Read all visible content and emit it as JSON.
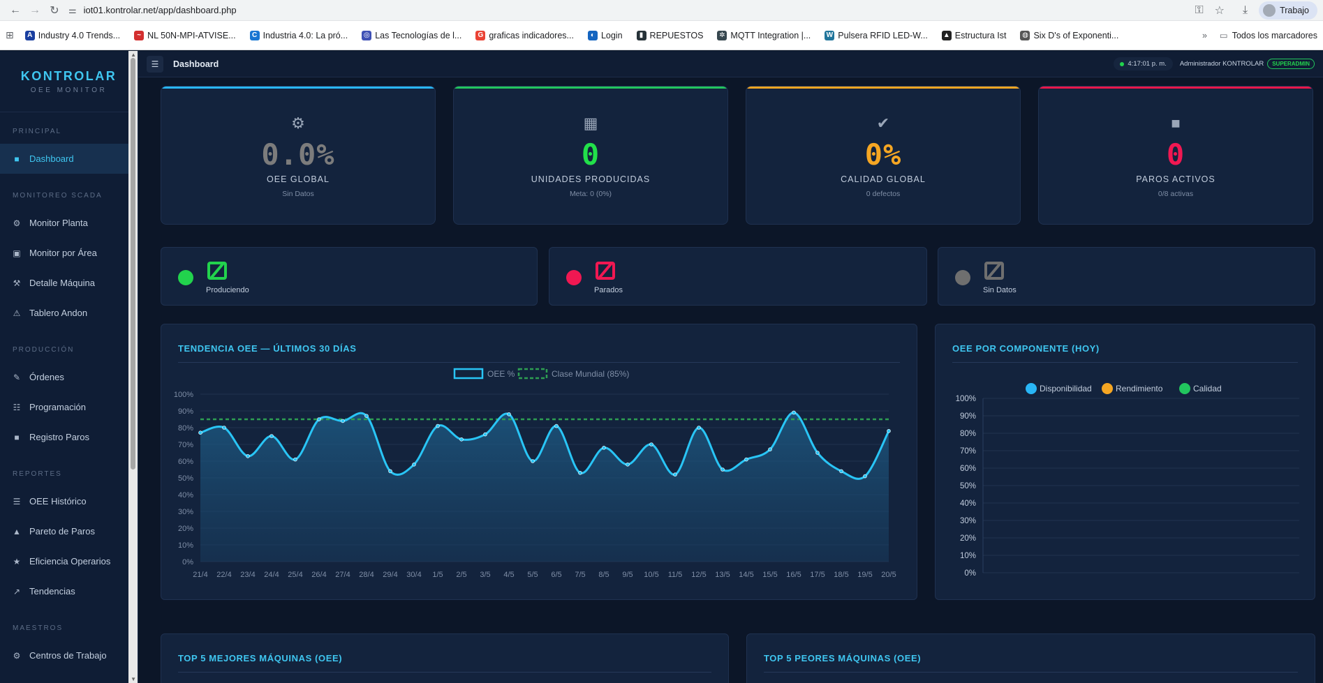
{
  "browser": {
    "url": "iot01.kontrolar.net/app/dashboard.php",
    "profile": "Trabajo",
    "bookmarks": [
      {
        "label": "Industry 4.0 Trends...",
        "color": "#1a3fa0",
        "glyph": "A"
      },
      {
        "label": "NL 50N-MPI-ATVISE...",
        "color": "#d32f2f",
        "glyph": "~"
      },
      {
        "label": "Industria 4.0: La pró...",
        "color": "#1976d2",
        "glyph": "C"
      },
      {
        "label": "Las Tecnologías de l...",
        "color": "#3f51b5",
        "glyph": "◎"
      },
      {
        "label": "graficas indicadores...",
        "color": "#ea4335",
        "glyph": "G"
      },
      {
        "label": "Login",
        "color": "#1565c0",
        "glyph": "◐"
      },
      {
        "label": "REPUESTOS",
        "color": "#263238",
        "glyph": "▮"
      },
      {
        "label": "MQTT Integration |...",
        "color": "#37474f",
        "glyph": "✲"
      },
      {
        "label": "Pulsera RFID LED-W...",
        "color": "#21759b",
        "glyph": "W"
      },
      {
        "label": "Estructura Ist",
        "color": "#222222",
        "glyph": "▲"
      },
      {
        "label": "Six D's of Exponenti...",
        "color": "#555555",
        "glyph": "◍"
      }
    ],
    "all_bookmarks": "Todos los marcadores"
  },
  "brand": {
    "logo": "KONTROLAR",
    "subtitle": "OEE MONITOR"
  },
  "sidebar": {
    "sections": [
      {
        "title": "PRINCIPAL",
        "items": [
          {
            "label": "Dashboard",
            "icon": "square-icon",
            "glyph": "■",
            "active": true
          }
        ]
      },
      {
        "title": "MONITOREO SCADA",
        "items": [
          {
            "label": "Monitor Planta",
            "icon": "gear-icon",
            "glyph": "⚙"
          },
          {
            "label": "Monitor por Área",
            "icon": "grid-icon",
            "glyph": "▣"
          },
          {
            "label": "Detalle Máquina",
            "icon": "tools-icon",
            "glyph": "⚒"
          },
          {
            "label": "Tablero Andon",
            "icon": "warning-icon",
            "glyph": "⚠"
          }
        ]
      },
      {
        "title": "PRODUCCIÓN",
        "items": [
          {
            "label": "Órdenes",
            "icon": "pencil-icon",
            "glyph": "✎"
          },
          {
            "label": "Programación",
            "icon": "list-icon",
            "glyph": "☷"
          },
          {
            "label": "Registro Paros",
            "icon": "stop-square-icon",
            "glyph": "■"
          }
        ]
      },
      {
        "title": "REPORTES",
        "items": [
          {
            "label": "OEE Histórico",
            "icon": "menu-icon",
            "glyph": "☰"
          },
          {
            "label": "Pareto de Paros",
            "icon": "triangle-icon",
            "glyph": "▲"
          },
          {
            "label": "Eficiencia Operarios",
            "icon": "star-icon",
            "glyph": "★"
          },
          {
            "label": "Tendencias",
            "icon": "trend-arrow-icon",
            "glyph": "↗"
          }
        ]
      },
      {
        "title": "MAESTROS",
        "items": [
          {
            "label": "Centros de Trabajo",
            "icon": "gear-icon",
            "glyph": "⚙"
          }
        ]
      }
    ]
  },
  "topbar": {
    "page_title": "Dashboard",
    "time": "4:17:01 p. m.",
    "user": "Administrador KONTROLAR",
    "role": "SUPERADMIN"
  },
  "kpis": [
    {
      "name": "oee-global",
      "icon": "gear-icon",
      "glyph": "⚙",
      "value": "0.0%",
      "label": "OEE GLOBAL",
      "sub": "Sin Datos",
      "accent": "#29b6f6",
      "value_color": "#7c7c7c",
      "icon_color": "#9aa6b8"
    },
    {
      "name": "unidades-producidas",
      "icon": "grid-icon",
      "glyph": "▦",
      "value": "0",
      "label": "UNIDADES PRODUCIDAS",
      "sub": "Meta: 0 (0%)",
      "accent": "#22c55e",
      "value_color": "#22e04a",
      "icon_color": "#9aa6b8"
    },
    {
      "name": "calidad-global",
      "icon": "check-icon",
      "glyph": "✔",
      "value": "0%",
      "label": "CALIDAD GLOBAL",
      "sub": "0 defectos",
      "accent": "#f5a623",
      "value_color": "#f5a623",
      "icon_color": "#9aa6b8"
    },
    {
      "name": "paros-activos",
      "icon": "stop-square-icon",
      "glyph": "■",
      "value": "0",
      "label": "PAROS ACTIVOS",
      "sub": "0/8 activas",
      "accent": "#e8174b",
      "value_color": "#f01852",
      "icon_color": "#9aa6b8"
    }
  ],
  "machine_status": [
    {
      "label": "Produciendo",
      "value": "0",
      "color": "#22d34d"
    },
    {
      "label": "Parados",
      "value": "0",
      "color": "#f01852"
    },
    {
      "label": "Sin Datos",
      "value": "0",
      "color": "#6f6f6f"
    }
  ],
  "panels": {
    "trend_title": "TENDENCIA OEE — ÚLTIMOS 30 DÍAS",
    "component_title": "OEE POR COMPONENTE (HOY)",
    "best_title": "TOP 5 MEJORES MÁQUINAS (OEE)",
    "worst_title": "TOP 5 PEORES MÁQUINAS (OEE)"
  },
  "chart_data": [
    {
      "type": "line",
      "title": "TENDENCIA OEE — ÚLTIMOS 30 DÍAS",
      "x": [
        "21/4",
        "22/4",
        "23/4",
        "24/4",
        "25/4",
        "26/4",
        "27/4",
        "28/4",
        "29/4",
        "30/4",
        "1/5",
        "2/5",
        "3/5",
        "4/5",
        "5/5",
        "6/5",
        "7/5",
        "8/5",
        "9/5",
        "10/5",
        "11/5",
        "12/5",
        "13/5",
        "14/5",
        "15/5",
        "16/5",
        "17/5",
        "18/5",
        "19/5",
        "20/5"
      ],
      "series": [
        {
          "name": "OEE %",
          "values": [
            77,
            80,
            63,
            75,
            61,
            85,
            84,
            87,
            54,
            58,
            81,
            73,
            76,
            88,
            60,
            81,
            53,
            68,
            58,
            70,
            52,
            80,
            55,
            61,
            67,
            89,
            65,
            54,
            51,
            78
          ],
          "color": "#29c5f6",
          "fill": true
        },
        {
          "name": "Clase Mundial (85%)",
          "values": [
            85,
            85,
            85,
            85,
            85,
            85,
            85,
            85,
            85,
            85,
            85,
            85,
            85,
            85,
            85,
            85,
            85,
            85,
            85,
            85,
            85,
            85,
            85,
            85,
            85,
            85,
            85,
            85,
            85,
            85
          ],
          "color": "#2e9e52",
          "dashed": true
        }
      ],
      "ylim": [
        0,
        100
      ],
      "yticks": [
        "0%",
        "10%",
        "20%",
        "30%",
        "40%",
        "50%",
        "60%",
        "70%",
        "80%",
        "90%",
        "100%"
      ],
      "legend": "top-center",
      "grid": true
    },
    {
      "type": "bar",
      "title": "OEE POR COMPONENTE (HOY)",
      "categories": [],
      "series": [
        {
          "name": "Disponibilidad",
          "values": [],
          "color": "#29b6f6"
        },
        {
          "name": "Rendimiento",
          "values": [],
          "color": "#f5a623"
        },
        {
          "name": "Calidad",
          "values": [],
          "color": "#22c55e"
        }
      ],
      "ylim": [
        0,
        100
      ],
      "yticks": [
        "0%",
        "10%",
        "20%",
        "30%",
        "40%",
        "50%",
        "60%",
        "70%",
        "80%",
        "90%",
        "100%"
      ],
      "legend": "top-center",
      "grid": true
    }
  ]
}
